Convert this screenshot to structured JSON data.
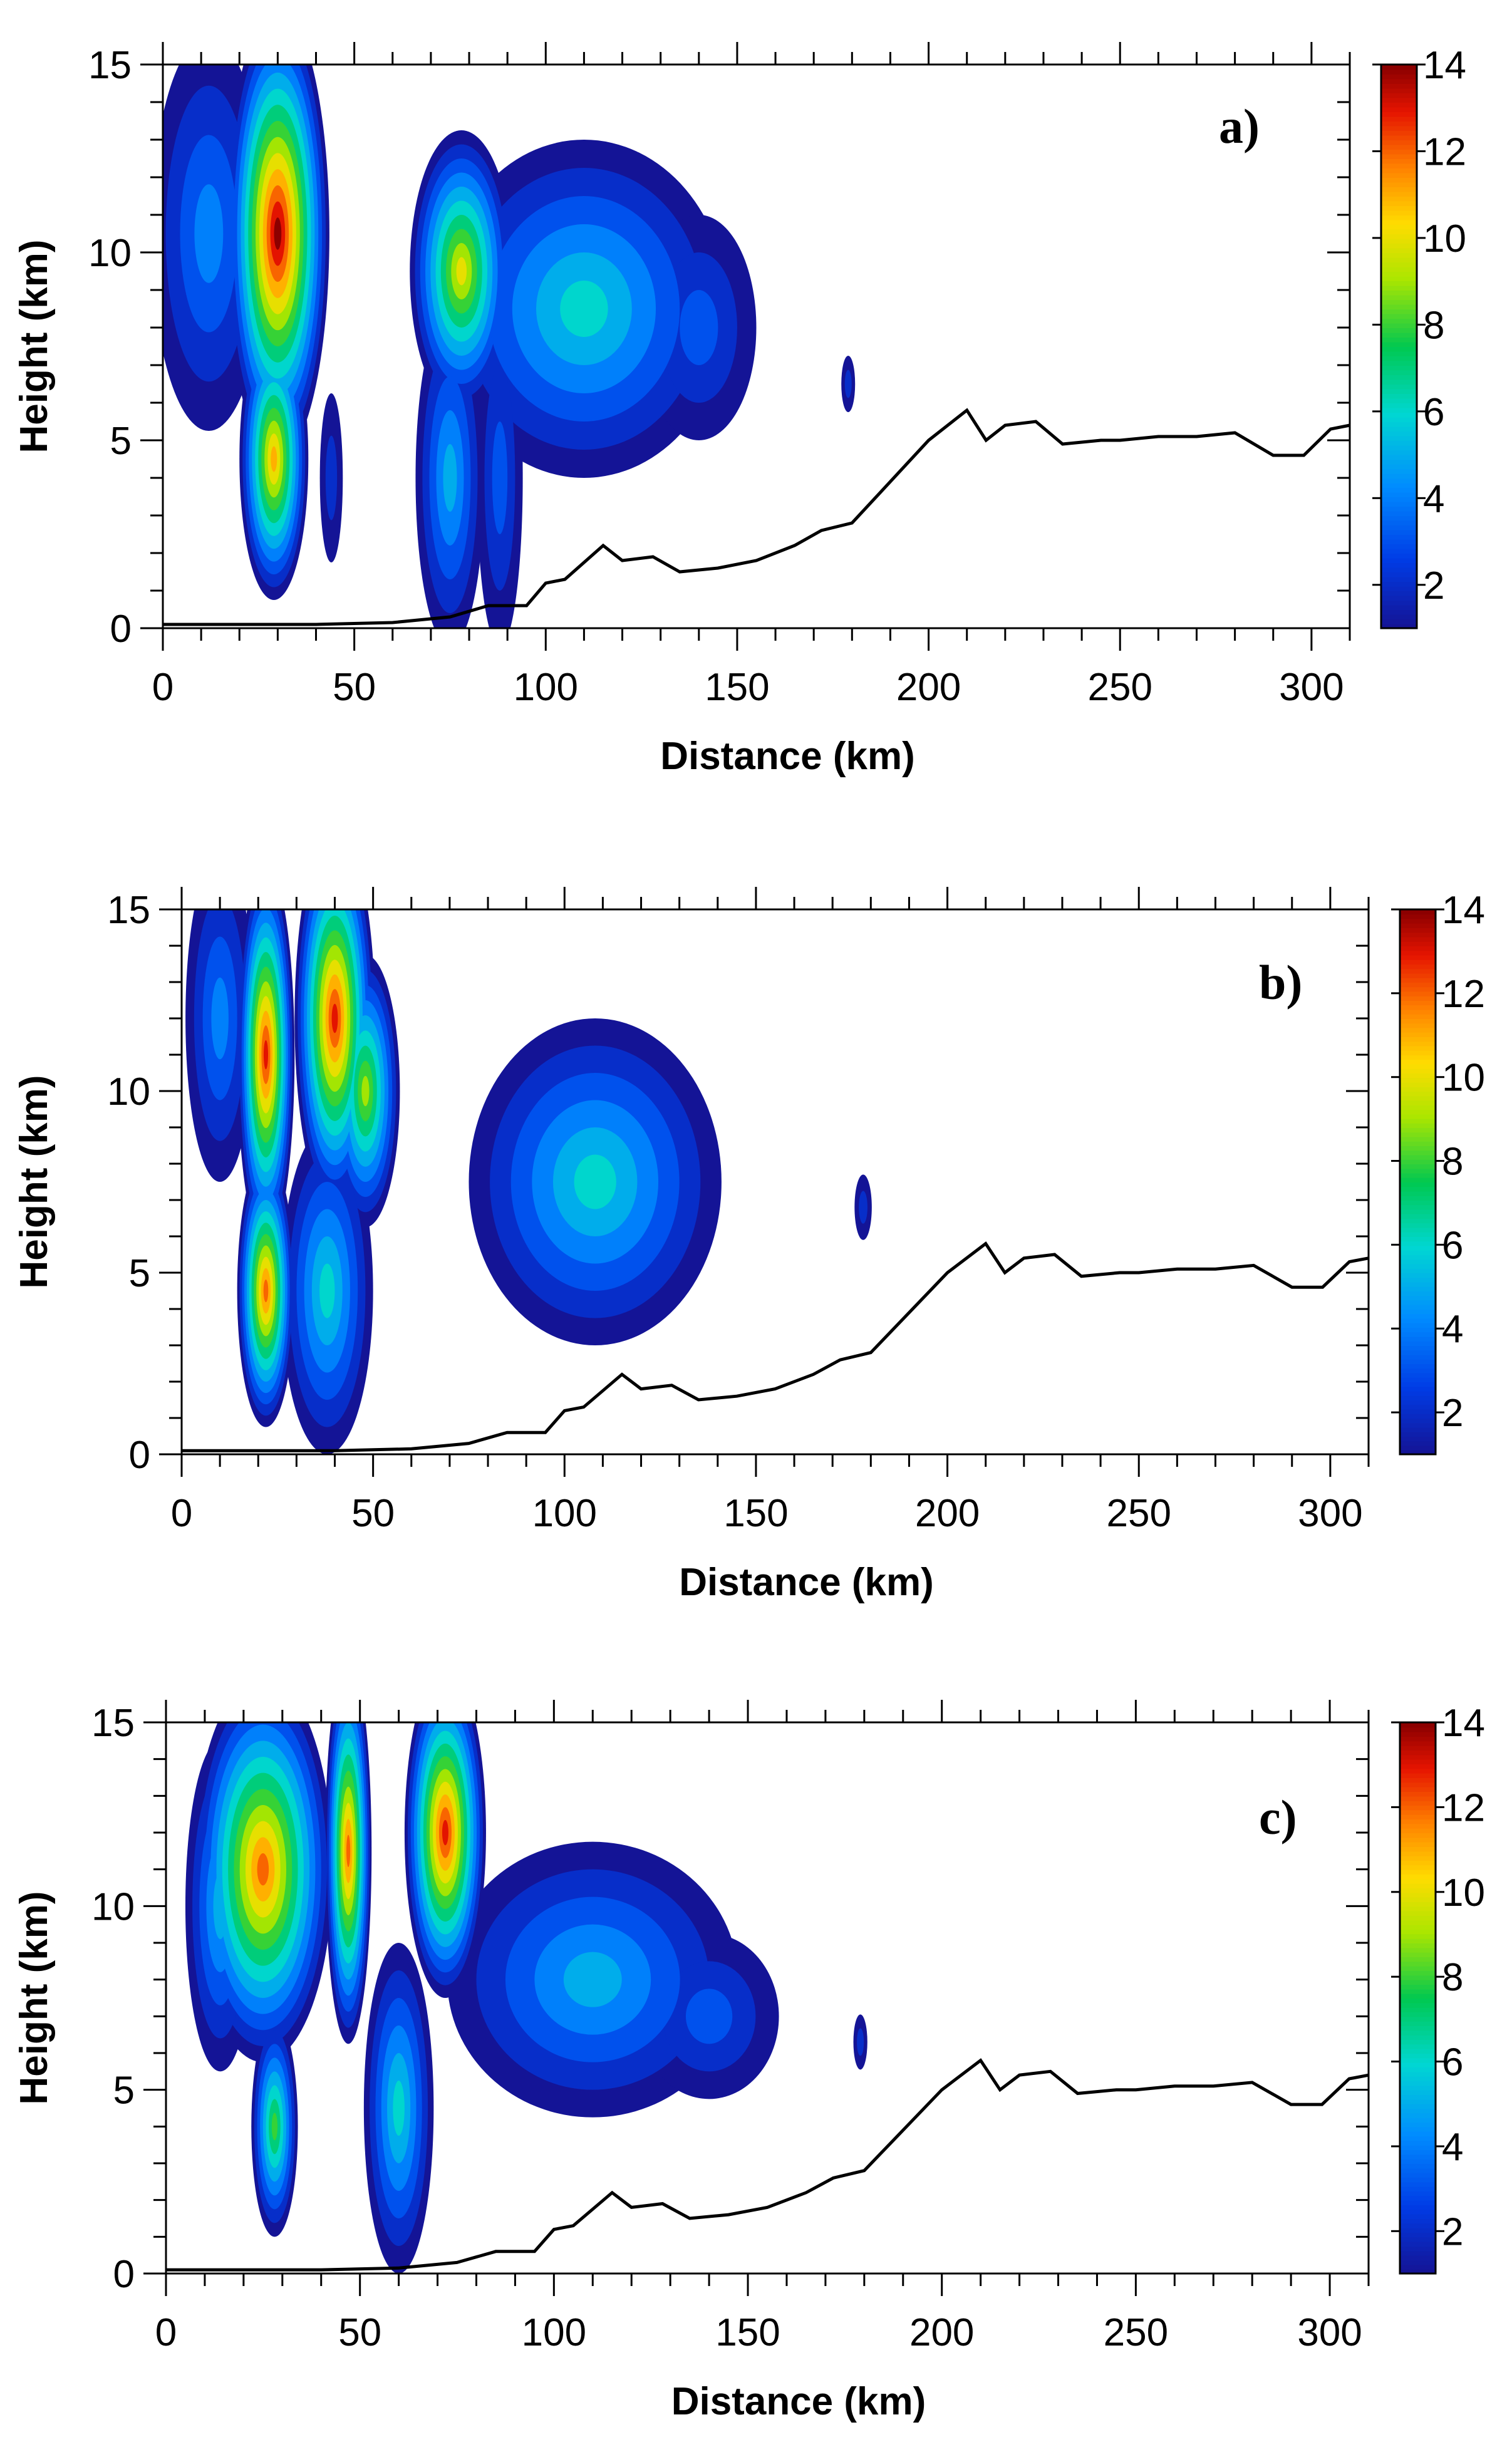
{
  "chart_data": [
    {
      "type": "heatmap",
      "panel_label": "a)",
      "xlabel": "Distance (km)",
      "ylabel": "Height (km)",
      "xlim": [
        0,
        310
      ],
      "ylim": [
        0,
        15
      ],
      "x_ticks": [
        "0",
        "50",
        "100",
        "150",
        "200",
        "250",
        "300"
      ],
      "y_ticks": [
        "0",
        "5",
        "10",
        "15"
      ],
      "colorbar": {
        "min": 1,
        "max": 14,
        "ticks": [
          "2",
          "4",
          "6",
          "8",
          "10",
          "12",
          "14"
        ]
      },
      "terrain": [
        [
          0,
          0.1
        ],
        [
          40,
          0.1
        ],
        [
          60,
          0.15
        ],
        [
          75,
          0.3
        ],
        [
          85,
          0.6
        ],
        [
          95,
          0.6
        ],
        [
          100,
          1.2
        ],
        [
          105,
          1.3
        ],
        [
          115,
          2.2
        ],
        [
          120,
          1.8
        ],
        [
          128,
          1.9
        ],
        [
          135,
          1.5
        ],
        [
          145,
          1.6
        ],
        [
          155,
          1.8
        ],
        [
          165,
          2.2
        ],
        [
          172,
          2.6
        ],
        [
          180,
          2.8
        ],
        [
          200,
          5.0
        ],
        [
          210,
          5.8
        ],
        [
          215,
          5.0
        ],
        [
          220,
          5.4
        ],
        [
          228,
          5.5
        ],
        [
          235,
          4.9
        ],
        [
          245,
          5.0
        ],
        [
          250,
          5.0
        ],
        [
          260,
          5.1
        ],
        [
          270,
          5.1
        ],
        [
          280,
          5.2
        ],
        [
          290,
          4.6
        ],
        [
          298,
          4.6
        ],
        [
          305,
          5.3
        ],
        [
          310,
          5.4
        ]
      ],
      "cells": [
        {
          "x": 30,
          "y": 10.5,
          "sx": 9,
          "sy": 4,
          "v": 14
        },
        {
          "x": 29,
          "y": 4.5,
          "sx": 6,
          "sy": 2.5,
          "v": 11
        },
        {
          "x": 12,
          "y": 10.5,
          "sx": 10,
          "sy": 3.5,
          "v": 4
        },
        {
          "x": 78,
          "y": 9.5,
          "sx": 9,
          "sy": 2.5,
          "v": 10
        },
        {
          "x": 110,
          "y": 8.5,
          "sx": 25,
          "sy": 3,
          "v": 6
        },
        {
          "x": 75,
          "y": 4.0,
          "sx": 6,
          "sy": 3,
          "v": 5
        },
        {
          "x": 88,
          "y": 4.0,
          "sx": 4,
          "sy": 3,
          "v": 3
        },
        {
          "x": 140,
          "y": 8,
          "sx": 10,
          "sy": 2,
          "v": 3
        },
        {
          "x": 44,
          "y": 4.0,
          "sx": 2,
          "sy": 1.5,
          "v": 2
        },
        {
          "x": 179,
          "y": 6.5,
          "sx": 1.2,
          "sy": 0.5,
          "v": 2
        }
      ]
    },
    {
      "type": "heatmap",
      "panel_label": "b)",
      "xlabel": "Distance (km)",
      "ylabel": "Height (km)",
      "xlim": [
        0,
        310
      ],
      "ylim": [
        0,
        15
      ],
      "x_ticks": [
        "0",
        "50",
        "100",
        "150",
        "200",
        "250",
        "300"
      ],
      "y_ticks": [
        "0",
        "5",
        "10",
        "15"
      ],
      "colorbar": {
        "min": 1,
        "max": 14,
        "ticks": [
          "2",
          "4",
          "6",
          "8",
          "10",
          "12",
          "14"
        ]
      },
      "terrain": [
        [
          0,
          0.1
        ],
        [
          40,
          0.1
        ],
        [
          60,
          0.15
        ],
        [
          75,
          0.3
        ],
        [
          85,
          0.6
        ],
        [
          95,
          0.6
        ],
        [
          100,
          1.2
        ],
        [
          105,
          1.3
        ],
        [
          115,
          2.2
        ],
        [
          120,
          1.8
        ],
        [
          128,
          1.9
        ],
        [
          135,
          1.5
        ],
        [
          145,
          1.6
        ],
        [
          155,
          1.8
        ],
        [
          165,
          2.2
        ],
        [
          172,
          2.6
        ],
        [
          180,
          2.8
        ],
        [
          200,
          5.0
        ],
        [
          210,
          5.8
        ],
        [
          215,
          5.0
        ],
        [
          220,
          5.4
        ],
        [
          228,
          5.5
        ],
        [
          235,
          4.9
        ],
        [
          245,
          5.0
        ],
        [
          250,
          5.0
        ],
        [
          260,
          5.1
        ],
        [
          270,
          5.1
        ],
        [
          280,
          5.2
        ],
        [
          290,
          4.6
        ],
        [
          298,
          4.6
        ],
        [
          305,
          5.3
        ],
        [
          310,
          5.4
        ]
      ],
      "cells": [
        {
          "x": 22,
          "y": 11,
          "sx": 5,
          "sy": 3.5,
          "v": 13
        },
        {
          "x": 22,
          "y": 4.5,
          "sx": 5,
          "sy": 2.5,
          "v": 12
        },
        {
          "x": 40,
          "y": 12,
          "sx": 7,
          "sy": 3.5,
          "v": 13
        },
        {
          "x": 48,
          "y": 10,
          "sx": 6,
          "sy": 2.5,
          "v": 9
        },
        {
          "x": 38,
          "y": 4.5,
          "sx": 8,
          "sy": 3,
          "v": 6
        },
        {
          "x": 10,
          "y": 12,
          "sx": 6,
          "sy": 3,
          "v": 4
        },
        {
          "x": 108,
          "y": 7.5,
          "sx": 22,
          "sy": 3,
          "v": 6
        },
        {
          "x": 178,
          "y": 6.8,
          "sx": 1.5,
          "sy": 0.6,
          "v": 2
        }
      ]
    },
    {
      "type": "heatmap",
      "panel_label": "c)",
      "xlabel": "Distance (km)",
      "ylabel": "Height (km)",
      "xlim": [
        0,
        310
      ],
      "ylim": [
        0,
        15
      ],
      "x_ticks": [
        "0",
        "50",
        "100",
        "150",
        "200",
        "250",
        "300"
      ],
      "y_ticks": [
        "0",
        "5",
        "10",
        "15"
      ],
      "colorbar": {
        "min": 1,
        "max": 14,
        "ticks": [
          "2",
          "4",
          "6",
          "8",
          "10",
          "12",
          "14"
        ]
      },
      "terrain": [
        [
          0,
          0.1
        ],
        [
          40,
          0.1
        ],
        [
          60,
          0.15
        ],
        [
          75,
          0.3
        ],
        [
          85,
          0.6
        ],
        [
          95,
          0.6
        ],
        [
          100,
          1.2
        ],
        [
          105,
          1.3
        ],
        [
          115,
          2.2
        ],
        [
          120,
          1.8
        ],
        [
          128,
          1.9
        ],
        [
          135,
          1.5
        ],
        [
          145,
          1.6
        ],
        [
          155,
          1.8
        ],
        [
          165,
          2.2
        ],
        [
          172,
          2.6
        ],
        [
          180,
          2.8
        ],
        [
          200,
          5.0
        ],
        [
          210,
          5.8
        ],
        [
          215,
          5.0
        ],
        [
          220,
          5.4
        ],
        [
          228,
          5.5
        ],
        [
          235,
          4.9
        ],
        [
          245,
          5.0
        ],
        [
          250,
          5.0
        ],
        [
          260,
          5.1
        ],
        [
          270,
          5.1
        ],
        [
          280,
          5.2
        ],
        [
          290,
          4.6
        ],
        [
          298,
          4.6
        ],
        [
          305,
          5.3
        ],
        [
          310,
          5.4
        ]
      ],
      "cells": [
        {
          "x": 25,
          "y": 11,
          "sx": 12,
          "sy": 3.5,
          "v": 12
        },
        {
          "x": 28,
          "y": 4,
          "sx": 4,
          "sy": 2,
          "v": 8
        },
        {
          "x": 47,
          "y": 11.5,
          "sx": 4,
          "sy": 3.5,
          "v": 12
        },
        {
          "x": 72,
          "y": 12,
          "sx": 7,
          "sy": 3,
          "v": 13
        },
        {
          "x": 60,
          "y": 4.5,
          "sx": 6,
          "sy": 3,
          "v": 6
        },
        {
          "x": 110,
          "y": 8,
          "sx": 25,
          "sy": 2.5,
          "v": 5
        },
        {
          "x": 140,
          "y": 7,
          "sx": 12,
          "sy": 1.5,
          "v": 3
        },
        {
          "x": 14,
          "y": 10,
          "sx": 6,
          "sy": 3,
          "v": 5
        },
        {
          "x": 179,
          "y": 6.3,
          "sx": 1.2,
          "sy": 0.5,
          "v": 2
        }
      ]
    }
  ]
}
